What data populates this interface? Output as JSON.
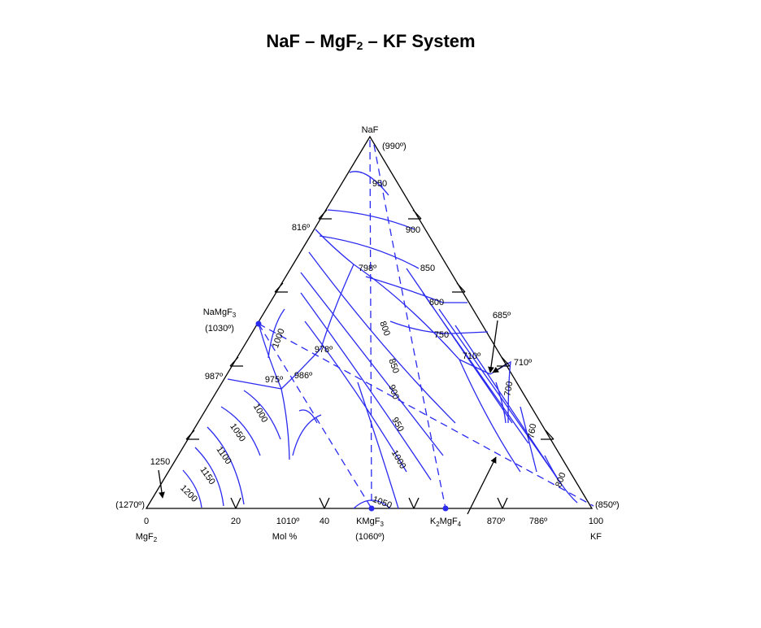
{
  "title": {
    "text": "NaF – MgF",
    "sub": "2",
    "tail": " – KF System"
  },
  "vertices": {
    "top": {
      "name": "NaF",
      "temp": "(990º)"
    },
    "left": {
      "axis": "0",
      "name": "MgF",
      "sub": "2",
      "temp": "(1270º)"
    },
    "right": {
      "axis": "100",
      "name": "KF",
      "temp": "(850º)"
    }
  },
  "compounds": {
    "namgf3": {
      "name": "NaMgF",
      "sub": "3",
      "temp": "(1030º)"
    },
    "kmgf3": {
      "name": "KMgF",
      "sub": "3",
      "temp": "(1060º)"
    },
    "k2mgf4": {
      "pre": "K",
      "sub1": "2",
      "name": "MgF",
      "sub": "4"
    }
  },
  "axis": {
    "ticks": [
      "20",
      "40"
    ],
    "unit": "Mol %"
  },
  "points": [
    "816º",
    "798º",
    "978º",
    "975º",
    "986º",
    "987º",
    "1010º",
    "870º",
    "786º",
    "685º",
    "710º",
    "710º"
  ],
  "isotherms": [
    "950",
    "900",
    "850",
    "800",
    "750",
    "800",
    "850",
    "900",
    "950",
    "1000",
    "1050",
    "1000",
    "1000",
    "1050",
    "1100",
    "1150",
    "1200",
    "1250",
    "700",
    "760",
    "800"
  ]
}
